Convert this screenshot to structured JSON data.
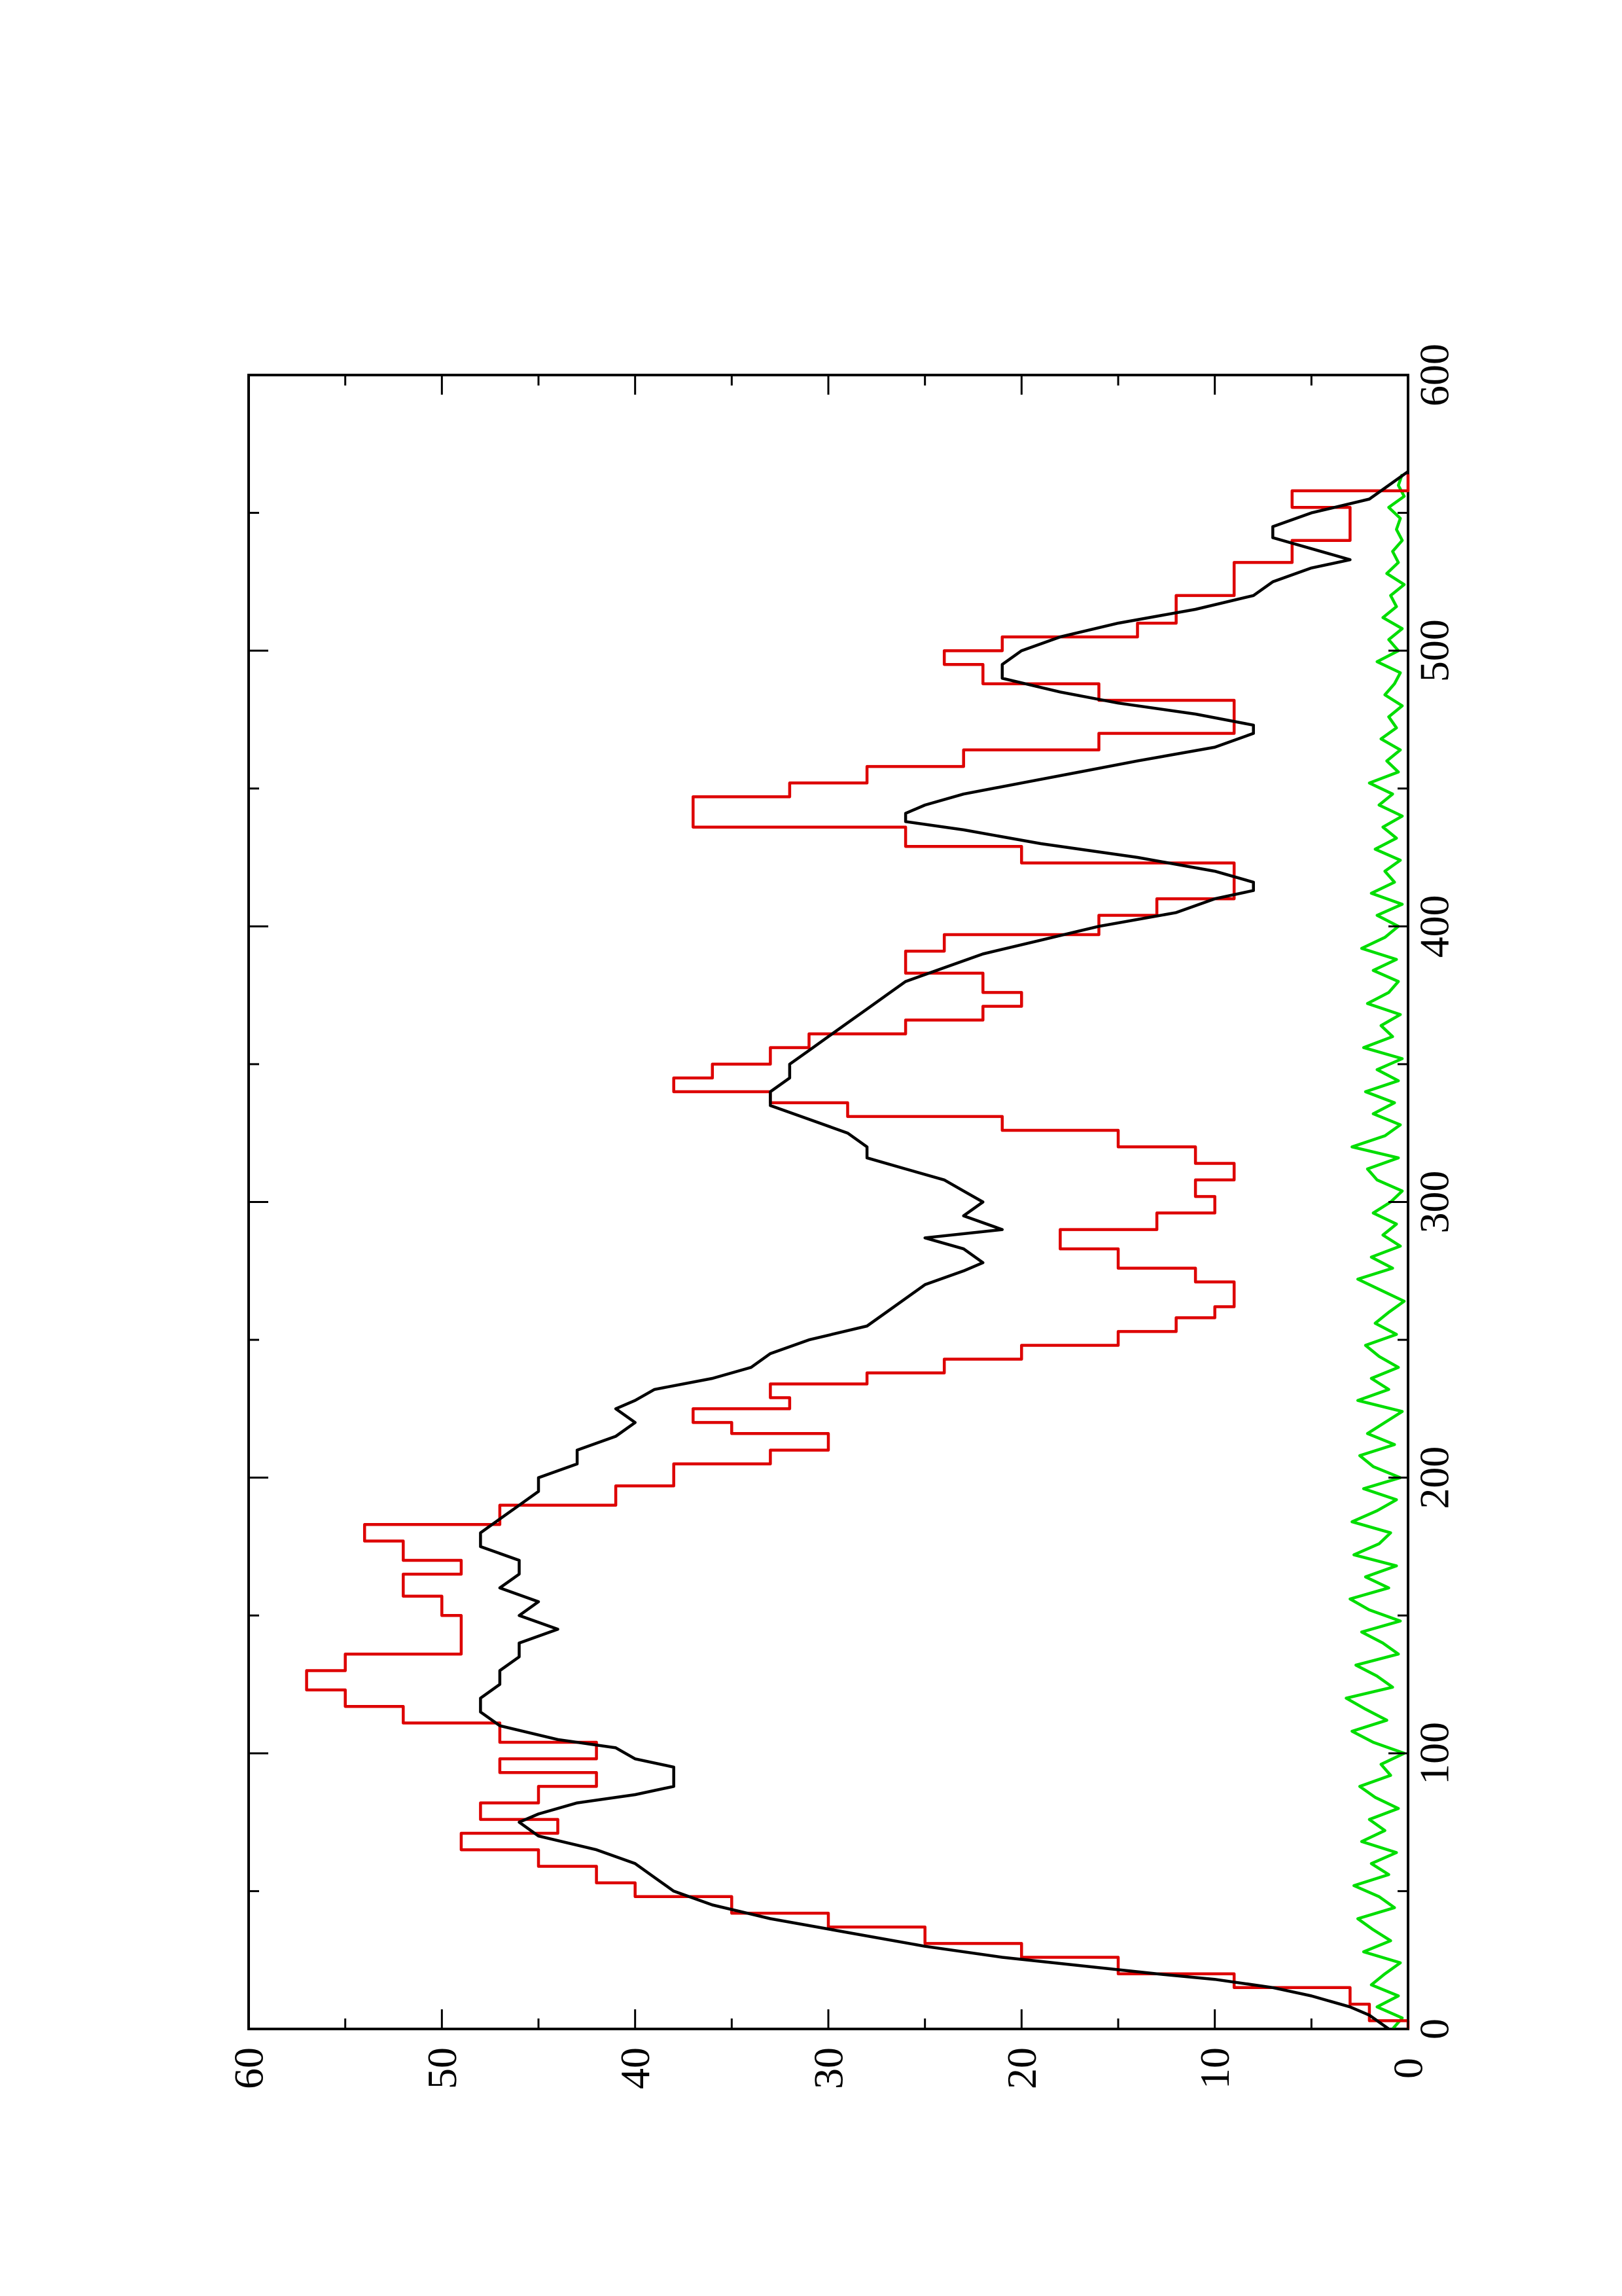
{
  "chart_data": {
    "type": "line",
    "title": "",
    "xlabel": "",
    "ylabel": "",
    "orientation": "rotated-90-ccw",
    "xlim": [
      0,
      600
    ],
    "ylim": [
      0,
      60
    ],
    "x_ticks": [
      {
        "value": 0,
        "label": "0"
      },
      {
        "value": 100,
        "label": "100"
      },
      {
        "value": 200,
        "label": "200"
      },
      {
        "value": 300,
        "label": "300"
      },
      {
        "value": 400,
        "label": "400"
      },
      {
        "value": 500,
        "label": "500"
      },
      {
        "value": 600,
        "label": "600"
      }
    ],
    "x_minor_ticks": [
      50,
      150,
      250,
      350,
      450,
      550
    ],
    "y_ticks": [
      {
        "value": 0,
        "label": "0"
      },
      {
        "value": 10,
        "label": "10"
      },
      {
        "value": 20,
        "label": "20"
      },
      {
        "value": 30,
        "label": "30"
      },
      {
        "value": 40,
        "label": "40"
      },
      {
        "value": 50,
        "label": "50"
      },
      {
        "value": 60,
        "label": "60"
      }
    ],
    "y_minor_ticks": [
      5,
      15,
      25,
      35,
      45,
      55
    ],
    "grid": false,
    "legend": "none",
    "series": [
      {
        "color": "#dd0000",
        "step": true,
        "x": [
          0,
          3,
          9,
          15,
          20,
          26,
          31,
          37,
          42,
          48,
          53,
          59,
          65,
          71,
          76,
          82,
          88,
          93,
          98,
          104,
          111,
          117,
          123,
          130,
          136,
          140,
          150,
          157,
          165,
          170,
          177,
          183,
          190,
          197,
          205,
          210,
          216,
          220,
          225,
          229,
          234,
          238,
          243,
          248,
          253,
          258,
          262,
          266,
          271,
          276,
          283,
          290,
          296,
          302,
          308,
          314,
          320,
          326,
          331,
          336,
          340,
          345,
          350,
          356,
          361,
          366,
          371,
          376,
          383,
          391,
          397,
          404,
          410,
          416,
          423,
          429,
          436,
          442,
          447,
          452,
          458,
          464,
          470,
          476,
          482,
          488,
          495,
          500,
          505,
          510,
          515,
          520,
          525,
          532,
          540,
          546,
          552,
          558,
          564
        ],
        "values": [
          0,
          2,
          3,
          9,
          15,
          20,
          25,
          30,
          35,
          40,
          42,
          45,
          49,
          44,
          48,
          45,
          42,
          47,
          42,
          47,
          52,
          55,
          57,
          55,
          49,
          49,
          50,
          52,
          49,
          52,
          54,
          47,
          41,
          38,
          33,
          30,
          35,
          37,
          32,
          33,
          28,
          24,
          20,
          15,
          12,
          10,
          9,
          9,
          11,
          15,
          18,
          13,
          10,
          11,
          9,
          11,
          15,
          21,
          29,
          33,
          38,
          36,
          33,
          31,
          26,
          22,
          20,
          22,
          26,
          24,
          16,
          13,
          9,
          9,
          20,
          26,
          37,
          37,
          32,
          28,
          23,
          16,
          9,
          9,
          16,
          22,
          24,
          21,
          14,
          12,
          12,
          9,
          9,
          6,
          3,
          3,
          6,
          0,
          0
        ]
      },
      {
        "color": "#000000",
        "step": false,
        "x": [
          0,
          5,
          8,
          12,
          15,
          18,
          20,
          23,
          26,
          30,
          35,
          40,
          45,
          50,
          55,
          60,
          65,
          70,
          75,
          78,
          82,
          85,
          88,
          90,
          95,
          98,
          102,
          105,
          110,
          115,
          120,
          125,
          130,
          135,
          140,
          145,
          150,
          155,
          160,
          165,
          170,
          175,
          180,
          185,
          190,
          195,
          200,
          205,
          210,
          215,
          220,
          225,
          228,
          232,
          236,
          240,
          245,
          250,
          255,
          260,
          265,
          270,
          275,
          278,
          283,
          287,
          290,
          295,
          300,
          304,
          308,
          312,
          316,
          320,
          325,
          330,
          335,
          340,
          345,
          350,
          355,
          360,
          365,
          370,
          375,
          380,
          385,
          390,
          395,
          400,
          405,
          410,
          413,
          416,
          420,
          425,
          430,
          435,
          438,
          441,
          444,
          448,
          452,
          456,
          460,
          465,
          470,
          473,
          477,
          481,
          485,
          490,
          495,
          500,
          505,
          510,
          515,
          520,
          525,
          530,
          533,
          537,
          541,
          545,
          550,
          555,
          560,
          565
        ],
        "values": [
          1,
          2,
          3,
          5,
          7,
          10,
          13,
          17,
          21,
          25,
          29,
          33,
          36,
          38,
          39,
          40,
          42,
          45,
          46,
          45,
          43,
          40,
          38,
          38,
          38,
          40,
          41,
          44,
          47,
          48,
          48,
          47,
          47,
          46,
          46,
          44,
          46,
          45,
          47,
          46,
          46,
          48,
          48,
          47,
          46,
          45,
          45,
          43,
          43,
          41,
          40,
          41,
          40,
          39,
          36,
          34,
          33,
          31,
          28,
          27,
          26,
          25,
          23,
          22,
          23,
          25,
          21,
          23,
          22,
          23,
          24,
          26,
          28,
          28,
          29,
          31,
          33,
          33,
          32,
          32,
          31,
          30,
          29,
          28,
          27,
          26,
          24,
          22,
          19,
          16,
          12,
          10,
          8,
          8,
          10,
          14,
          19,
          23,
          26,
          26,
          25,
          23,
          20,
          17,
          14,
          10,
          8,
          8,
          11,
          15,
          18,
          21,
          21,
          20,
          18,
          15,
          11,
          8,
          7,
          5,
          3,
          5,
          7,
          7,
          5,
          2,
          1,
          0
        ]
      },
      {
        "color": "#00dd00",
        "step": false,
        "x": [
          0,
          4,
          8,
          12,
          16,
          20,
          24,
          28,
          32,
          36,
          40,
          44,
          48,
          52,
          56,
          60,
          64,
          68,
          72,
          76,
          80,
          84,
          88,
          92,
          96,
          100,
          104,
          108,
          112,
          116,
          120,
          124,
          128,
          132,
          136,
          140,
          144,
          148,
          152,
          156,
          160,
          164,
          168,
          172,
          176,
          180,
          184,
          188,
          192,
          196,
          200,
          204,
          208,
          212,
          216,
          220,
          224,
          228,
          232,
          236,
          240,
          244,
          248,
          252,
          256,
          260,
          264,
          268,
          272,
          276,
          280,
          284,
          288,
          292,
          296,
          300,
          304,
          308,
          312,
          316,
          320,
          324,
          328,
          332,
          336,
          340,
          344,
          348,
          352,
          356,
          360,
          364,
          368,
          372,
          376,
          380,
          384,
          388,
          392,
          396,
          400,
          404,
          408,
          412,
          416,
          420,
          424,
          428,
          432,
          436,
          440,
          444,
          448,
          452,
          456,
          460,
          464,
          468,
          472,
          476,
          480,
          484,
          488,
          492,
          496,
          500,
          504,
          508,
          512,
          516,
          520,
          524,
          528,
          532,
          536,
          540,
          544,
          548,
          552,
          556,
          560,
          564
        ],
        "values": [
          0.8,
          0.3,
          1.6,
          0.5,
          1.9,
          1.2,
          0.4,
          2.3,
          0.9,
          1.8,
          2.6,
          0.7,
          1.5,
          2.8,
          1.0,
          1.9,
          0.6,
          2.4,
          1.2,
          2.0,
          0.5,
          1.7,
          2.5,
          0.9,
          1.4,
          0.2,
          1.8,
          2.9,
          1.1,
          2.2,
          3.2,
          0.8,
          1.6,
          2.7,
          0.5,
          1.3,
          2.4,
          0.4,
          2.0,
          3.0,
          1.0,
          2.2,
          0.6,
          2.8,
          1.5,
          0.9,
          2.9,
          1.6,
          0.6,
          2.3,
          0.4,
          1.8,
          2.5,
          0.7,
          2.1,
          1.2,
          0.3,
          2.6,
          1.0,
          1.9,
          0.5,
          1.5,
          2.2,
          0.6,
          1.7,
          1.0,
          0.2,
          1.4,
          2.6,
          0.8,
          1.9,
          0.4,
          1.3,
          0.6,
          1.8,
          0.9,
          0.3,
          1.6,
          2.1,
          0.5,
          2.9,
          1.2,
          0.4,
          1.8,
          0.7,
          2.2,
          0.5,
          1.6,
          0.3,
          2.3,
          0.8,
          1.4,
          0.4,
          2.1,
          1.0,
          0.5,
          1.8,
          0.6,
          2.4,
          1.2,
          0.5,
          1.6,
          0.3,
          1.9,
          0.7,
          1.2,
          0.4,
          1.7,
          0.6,
          1.3,
          0.3,
          1.5,
          0.8,
          2.0,
          0.5,
          1.1,
          0.4,
          1.4,
          0.6,
          1.0,
          0.3,
          1.2,
          0.7,
          0.4,
          1.6,
          0.5,
          1.0,
          0.3,
          1.3,
          0.6,
          0.9,
          0.2,
          1.1,
          0.5,
          0.8,
          0.3,
          0.6,
          0.4,
          1.0,
          0.2,
          0.5,
          0.3
        ]
      }
    ]
  }
}
